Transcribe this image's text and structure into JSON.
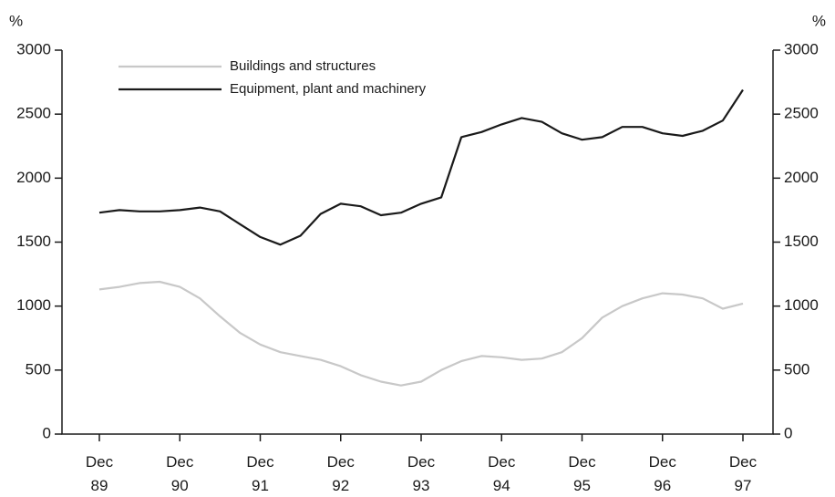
{
  "chart_data": {
    "type": "line",
    "y_label": "%",
    "y2_label": "%",
    "categories": [
      "Dec 89",
      null,
      null,
      null,
      "Dec 90",
      null,
      null,
      null,
      "Dec 91",
      null,
      null,
      null,
      "Dec 92",
      null,
      null,
      null,
      "Dec 93",
      null,
      null,
      null,
      "Dec 94",
      null,
      null,
      null,
      "Dec 95",
      null,
      null,
      null,
      "Dec 96",
      null,
      null,
      null,
      "Dec 97"
    ],
    "series": [
      {
        "name": "Buildings and structures",
        "color": "#c8c8c8",
        "values": [
          1130,
          1150,
          1180,
          1190,
          1150,
          1060,
          920,
          790,
          700,
          640,
          610,
          580,
          530,
          460,
          410,
          380,
          410,
          500,
          570,
          610,
          600,
          580,
          590,
          640,
          750,
          910,
          1000,
          1060,
          1100,
          1090,
          1060,
          980,
          1020
        ]
      },
      {
        "name": "Equipment, plant and machinery",
        "color": "#1a1a1a",
        "values": [
          1730,
          1750,
          1740,
          1740,
          1750,
          1770,
          1740,
          1640,
          1540,
          1480,
          1550,
          1720,
          1800,
          1780,
          1710,
          1730,
          1800,
          1850,
          2320,
          2360,
          2420,
          2470,
          2440,
          2350,
          2300,
          2320,
          2400,
          2400,
          2350,
          2330,
          2370,
          2450,
          2690
        ]
      }
    ],
    "ylim": [
      0,
      3000
    ],
    "yticks": [
      0,
      500,
      1000,
      1500,
      2000,
      2500,
      3000
    ],
    "y2lim": [
      0,
      3000
    ],
    "y2ticks": [
      0,
      500,
      1000,
      1500,
      2000,
      2500,
      3000
    ],
    "legend": "upper left",
    "grid": false
  }
}
